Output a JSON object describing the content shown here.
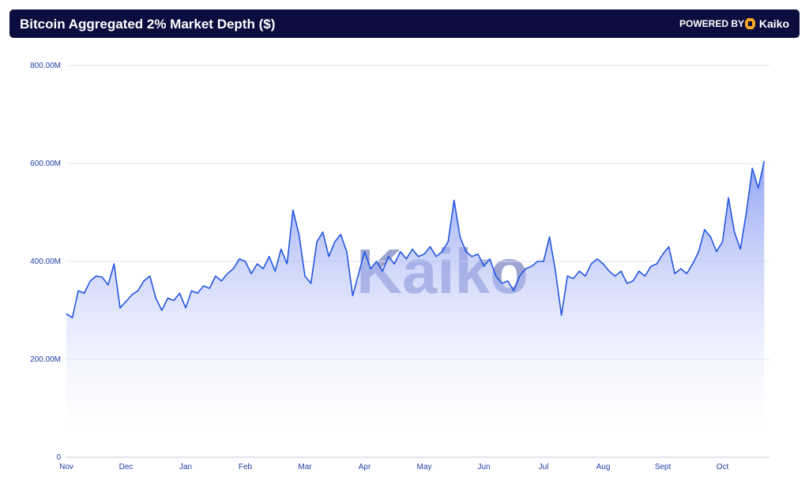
{
  "header": {
    "powered_by": "POWERED BY",
    "brand": "Kaiko"
  },
  "chart_data": {
    "type": "area",
    "title": "Bitcoin Aggregated 2% Market Depth ($)",
    "watermark": "Kaiko",
    "color": "#2456e0",
    "grid": true,
    "categories": [
      "Nov",
      null,
      null,
      null,
      null,
      null,
      null,
      null,
      null,
      null,
      "Dec",
      null,
      null,
      null,
      null,
      null,
      null,
      null,
      null,
      null,
      "Jan",
      null,
      null,
      null,
      null,
      null,
      null,
      null,
      null,
      null,
      "Feb",
      null,
      null,
      null,
      null,
      null,
      null,
      null,
      null,
      null,
      "Mar",
      null,
      null,
      null,
      null,
      null,
      null,
      null,
      null,
      null,
      "Apr",
      null,
      null,
      null,
      null,
      null,
      null,
      null,
      null,
      null,
      "May",
      null,
      null,
      null,
      null,
      null,
      null,
      null,
      null,
      null,
      "Jun",
      null,
      null,
      null,
      null,
      null,
      null,
      null,
      null,
      null,
      "Jul",
      null,
      null,
      null,
      null,
      null,
      null,
      null,
      null,
      null,
      "Aug",
      null,
      null,
      null,
      null,
      null,
      null,
      null,
      null,
      null,
      "Sept",
      null,
      null,
      null,
      null,
      null,
      null,
      null,
      null,
      null,
      "Oct",
      null,
      null,
      null,
      null,
      null,
      null,
      null
    ],
    "values": [
      293000000,
      285000000,
      340000000,
      335000000,
      360000000,
      370000000,
      368000000,
      352000000,
      395000000,
      305000000,
      318000000,
      332000000,
      340000000,
      360000000,
      370000000,
      325000000,
      300000000,
      325000000,
      320000000,
      335000000,
      305000000,
      340000000,
      335000000,
      350000000,
      345000000,
      370000000,
      360000000,
      375000000,
      385000000,
      405000000,
      400000000,
      375000000,
      395000000,
      385000000,
      410000000,
      380000000,
      425000000,
      395000000,
      505000000,
      455000000,
      370000000,
      355000000,
      440000000,
      460000000,
      410000000,
      440000000,
      455000000,
      420000000,
      330000000,
      375000000,
      420000000,
      385000000,
      400000000,
      380000000,
      410000000,
      395000000,
      420000000,
      405000000,
      425000000,
      410000000,
      415000000,
      430000000,
      410000000,
      420000000,
      440000000,
      525000000,
      450000000,
      420000000,
      410000000,
      415000000,
      390000000,
      405000000,
      370000000,
      355000000,
      360000000,
      340000000,
      370000000,
      385000000,
      390000000,
      400000000,
      400000000,
      450000000,
      380000000,
      290000000,
      370000000,
      365000000,
      380000000,
      370000000,
      395000000,
      405000000,
      395000000,
      380000000,
      370000000,
      380000000,
      355000000,
      360000000,
      380000000,
      370000000,
      390000000,
      395000000,
      415000000,
      430000000,
      375000000,
      385000000,
      375000000,
      395000000,
      420000000,
      465000000,
      450000000,
      420000000,
      440000000,
      530000000,
      460000000,
      425000000,
      500000000,
      590000000,
      550000000,
      605000000
    ],
    "ylim": [
      0,
      800000000
    ],
    "yticks": [
      0,
      {
        "value": 200000000,
        "label": "200.00M"
      },
      {
        "value": 400000000,
        "label": "400.00M"
      },
      {
        "value": 600000000,
        "label": "600.00M"
      },
      {
        "value": 800000000,
        "label": "800.00M"
      }
    ]
  }
}
